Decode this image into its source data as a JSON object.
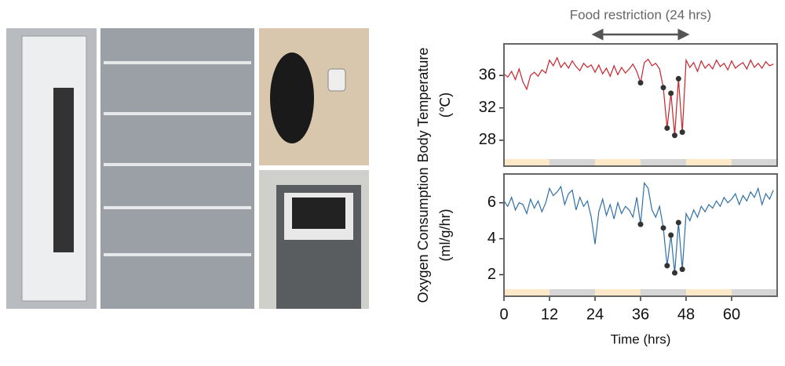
{
  "chart_data": [
    {
      "type": "line",
      "ylabel": [
        "Body Temperature",
        "(℃)"
      ],
      "annotation": {
        "text": "Food restriction (24 hrs)",
        "x": [
          24,
          48
        ]
      },
      "xlim": [
        0,
        72
      ],
      "ylim": [
        24.8,
        39.9
      ],
      "yticks": [
        28,
        32,
        36
      ],
      "periods": [
        {
          "start": 0,
          "end": 12,
          "color": "#fde8c8"
        },
        {
          "start": 12,
          "end": 24,
          "color": "#d6d6d6"
        },
        {
          "start": 24,
          "end": 36,
          "color": "#fde8c8"
        },
        {
          "start": 36,
          "end": 48,
          "color": "#d6d6d6"
        },
        {
          "start": 48,
          "end": 60,
          "color": "#fde8c8"
        },
        {
          "start": 60,
          "end": 72,
          "color": "#d6d6d6"
        }
      ],
      "series": [
        {
          "color": "#c8242c",
          "x": [
            0,
            1,
            2,
            3,
            4,
            5,
            6,
            7,
            8,
            9,
            10,
            11,
            12,
            13,
            14,
            15,
            16,
            17,
            18,
            19,
            20,
            21,
            22,
            23,
            24,
            25,
            26,
            27,
            28,
            29,
            30,
            31,
            32,
            33,
            34,
            35,
            36,
            37,
            38,
            39,
            40,
            41,
            42,
            43,
            44,
            45,
            46,
            47,
            48,
            49,
            50,
            51,
            52,
            53,
            54,
            55,
            56,
            57,
            58,
            59,
            60,
            61,
            62,
            63,
            64,
            65,
            66,
            67,
            68,
            69,
            70,
            71
          ],
          "values": [
            36.2,
            35.8,
            36.5,
            35.5,
            36.8,
            35.2,
            34.3,
            36.0,
            36.4,
            35.9,
            36.7,
            36.3,
            37.9,
            37.2,
            38.2,
            37.0,
            37.6,
            36.9,
            37.8,
            37.1,
            36.6,
            37.5,
            37.0,
            37.3,
            36.4,
            37.3,
            36.2,
            36.9,
            35.9,
            37.2,
            36.1,
            37.0,
            36.3,
            36.8,
            37.4,
            36.5,
            35.1,
            37.6,
            38.0,
            37.2,
            37.5,
            36.8,
            34.5,
            29.5,
            33.8,
            28.6,
            35.6,
            29.0,
            37.9,
            37.0,
            37.6,
            36.5,
            37.8,
            36.9,
            37.4,
            36.8,
            37.9,
            37.1,
            37.5,
            36.7,
            37.8,
            36.9,
            37.3,
            37.6,
            36.8,
            37.9,
            37.0,
            37.5,
            36.9,
            37.7,
            37.2,
            37.4
          ]
        },
        {
          "type": "scatter",
          "color": "#333333",
          "x": [
            36,
            42,
            43,
            44,
            45,
            46,
            47
          ],
          "values": [
            35.1,
            34.5,
            29.5,
            33.8,
            28.6,
            35.6,
            29.0
          ]
        }
      ]
    },
    {
      "type": "line",
      "ylabel": [
        "Oxygen Consumption",
        "(ml/g/hr)"
      ],
      "xlabel": "Time (hrs)",
      "xlim": [
        0,
        72
      ],
      "ylim": [
        0.8,
        7.6
      ],
      "yticks": [
        2,
        4,
        6
      ],
      "xticks": [
        0,
        12,
        24,
        36,
        48,
        60
      ],
      "periods": [
        {
          "start": 0,
          "end": 12,
          "color": "#fde8c8"
        },
        {
          "start": 12,
          "end": 24,
          "color": "#d6d6d6"
        },
        {
          "start": 24,
          "end": 36,
          "color": "#fde8c8"
        },
        {
          "start": 36,
          "end": 48,
          "color": "#d6d6d6"
        },
        {
          "start": 48,
          "end": 60,
          "color": "#fde8c8"
        },
        {
          "start": 60,
          "end": 72,
          "color": "#d6d6d6"
        }
      ],
      "series": [
        {
          "color": "#2f6fa7",
          "x": [
            0,
            1,
            2,
            3,
            4,
            5,
            6,
            7,
            8,
            9,
            10,
            11,
            12,
            13,
            14,
            15,
            16,
            17,
            18,
            19,
            20,
            21,
            22,
            23,
            24,
            25,
            26,
            27,
            28,
            29,
            30,
            31,
            32,
            33,
            34,
            35,
            36,
            37,
            38,
            39,
            40,
            41,
            42,
            43,
            44,
            45,
            46,
            47,
            48,
            49,
            50,
            51,
            52,
            53,
            54,
            55,
            56,
            57,
            58,
            59,
            60,
            61,
            62,
            63,
            64,
            65,
            66,
            67,
            68,
            69,
            70,
            71
          ],
          "values": [
            6.1,
            5.8,
            6.3,
            5.6,
            6.0,
            5.9,
            5.4,
            6.2,
            5.7,
            6.1,
            5.5,
            6.0,
            6.8,
            6.4,
            6.6,
            6.9,
            5.9,
            6.5,
            6.7,
            5.6,
            6.3,
            5.8,
            6.1,
            5.2,
            3.7,
            5.5,
            6.2,
            5.3,
            5.9,
            5.1,
            6.0,
            5.4,
            5.8,
            5.6,
            5.2,
            6.3,
            4.8,
            7.1,
            6.8,
            5.6,
            5.2,
            5.8,
            4.6,
            2.5,
            4.2,
            2.1,
            4.9,
            2.3,
            5.4,
            5.0,
            5.6,
            5.2,
            5.8,
            5.5,
            5.9,
            5.7,
            6.1,
            5.8,
            6.3,
            6.0,
            6.2,
            6.5,
            5.9,
            6.4,
            6.1,
            6.6,
            6.3,
            6.8,
            5.9,
            6.5,
            6.2,
            6.7
          ]
        },
        {
          "type": "scatter",
          "color": "#333333",
          "x": [
            36,
            42,
            43,
            44,
            45,
            46,
            47
          ],
          "values": [
            4.8,
            4.6,
            2.5,
            4.2,
            2.1,
            4.9,
            2.3
          ]
        }
      ]
    }
  ]
}
